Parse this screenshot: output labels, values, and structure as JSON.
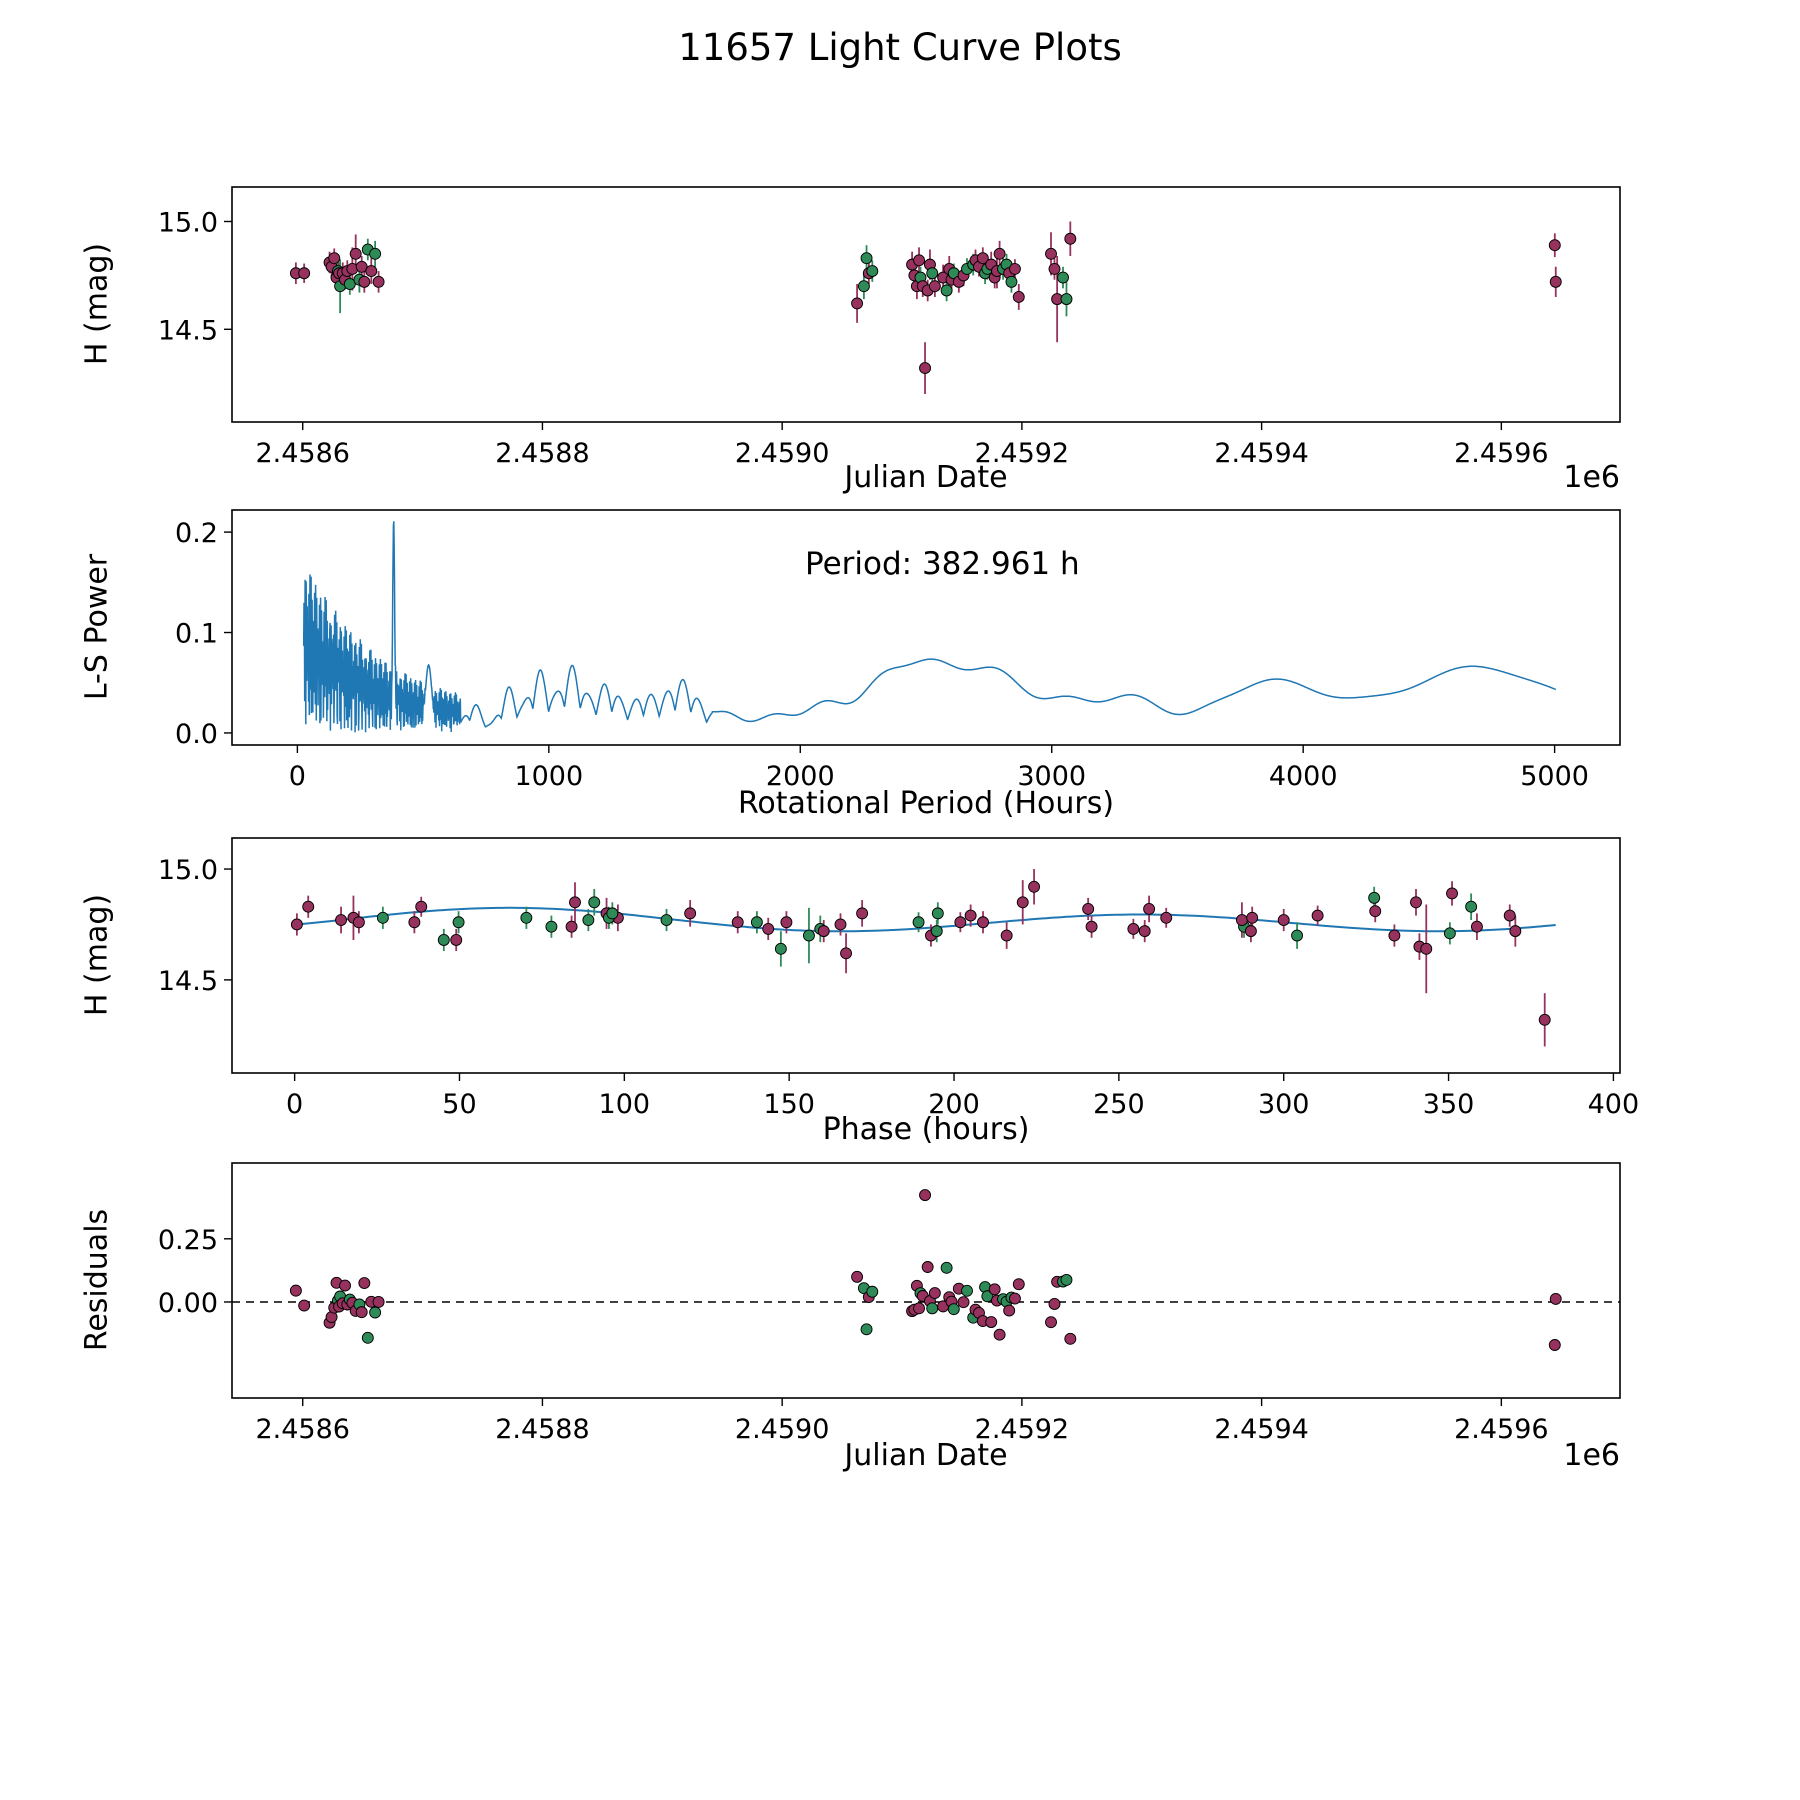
{
  "figure": {
    "title": "11657 Light Curve Plots"
  },
  "colors": {
    "series_magenta": "#97315d",
    "series_green": "#2e8b57",
    "fit_line": "#1f77b4",
    "axis": "#000000"
  },
  "chart_data": [
    {
      "kind": "lightcurve",
      "type": "scatter",
      "xlabel": "Julian Date",
      "ylabel": "H (mag)",
      "x_offset_label": "1e6",
      "xlim": [
        2458541,
        2459699
      ],
      "ylim": [
        14.07,
        15.16
      ],
      "xticks": [
        {
          "v": 2458600,
          "label": "2.4586"
        },
        {
          "v": 2458800,
          "label": "2.4588"
        },
        {
          "v": 2459000,
          "label": "2.4590"
        },
        {
          "v": 2459200,
          "label": "2.4592"
        },
        {
          "v": 2459400,
          "label": "2.4594"
        },
        {
          "v": 2459600,
          "label": "2.4596"
        }
      ],
      "yticks": [
        {
          "v": 15.0,
          "label": "15.0"
        },
        {
          "v": 14.5,
          "label": "14.5"
        }
      ],
      "series_names": [
        "observations-magenta",
        "observations-green"
      ],
      "points": [
        [
          2458594.3,
          14.76,
          0.05,
          0
        ],
        [
          2458601.2,
          14.76,
          0.045,
          0
        ],
        [
          2458622.4,
          14.81,
          0.05,
          0
        ],
        [
          2458624.1,
          14.79,
          0.05,
          0
        ],
        [
          2458626.3,
          14.83,
          0.045,
          0
        ],
        [
          2458628.2,
          14.74,
          0.05,
          0
        ],
        [
          2458629.4,
          14.77,
          0.05,
          1
        ],
        [
          2458630.3,
          14.76,
          0.05,
          0
        ],
        [
          2458631.2,
          14.7,
          0.125,
          1
        ],
        [
          2458633.4,
          14.76,
          0.05,
          0
        ],
        [
          2458635.3,
          14.73,
          0.045,
          0
        ],
        [
          2458637.2,
          14.77,
          0.05,
          0
        ],
        [
          2458639.3,
          14.71,
          0.05,
          1
        ],
        [
          2458641.4,
          14.78,
          0.1,
          0
        ],
        [
          2458644.2,
          14.85,
          0.09,
          0
        ],
        [
          2458647.3,
          14.73,
          0.06,
          1
        ],
        [
          2458649.2,
          14.79,
          0.05,
          0
        ],
        [
          2458651.4,
          14.72,
          0.05,
          0
        ],
        [
          2458654.3,
          14.87,
          0.05,
          1
        ],
        [
          2458657.2,
          14.77,
          0.06,
          0
        ],
        [
          2458660.4,
          14.85,
          0.06,
          1
        ],
        [
          2458663.3,
          14.72,
          0.05,
          0
        ],
        [
          2459062.5,
          14.62,
          0.09,
          0
        ],
        [
          2459068.2,
          14.7,
          0.06,
          1
        ],
        [
          2459070.4,
          14.83,
          0.06,
          1
        ],
        [
          2459072.3,
          14.76,
          0.05,
          0
        ],
        [
          2459075.2,
          14.77,
          0.05,
          1
        ],
        [
          2459108.4,
          14.8,
          0.06,
          0
        ],
        [
          2459110.3,
          14.75,
          0.05,
          0
        ],
        [
          2459112.4,
          14.7,
          0.06,
          0
        ],
        [
          2459114.2,
          14.82,
          0.06,
          0
        ],
        [
          2459115.4,
          14.74,
          0.05,
          1
        ],
        [
          2459117.3,
          14.7,
          0.05,
          0
        ],
        [
          2459119.2,
          14.32,
          0.12,
          0
        ],
        [
          2459121.4,
          14.68,
          0.05,
          0
        ],
        [
          2459123.3,
          14.8,
          0.07,
          0
        ],
        [
          2459125.2,
          14.76,
          0.05,
          1
        ],
        [
          2459127.4,
          14.7,
          0.05,
          0
        ],
        [
          2459134.3,
          14.74,
          0.06,
          0
        ],
        [
          2459137.2,
          14.68,
          0.05,
          1
        ],
        [
          2459139.4,
          14.78,
          0.06,
          0
        ],
        [
          2459141.3,
          14.73,
          0.05,
          0
        ],
        [
          2459143.2,
          14.76,
          0.045,
          1
        ],
        [
          2459147.4,
          14.72,
          0.05,
          0
        ],
        [
          2459151.3,
          14.75,
          0.05,
          0
        ],
        [
          2459154.2,
          14.78,
          0.05,
          1
        ],
        [
          2459159.4,
          14.8,
          0.05,
          1
        ],
        [
          2459161.3,
          14.82,
          0.05,
          0
        ],
        [
          2459164.2,
          14.79,
          0.045,
          0
        ],
        [
          2459167.4,
          14.83,
          0.05,
          0
        ],
        [
          2459169.3,
          14.76,
          0.05,
          1
        ],
        [
          2459171.2,
          14.78,
          0.05,
          1
        ],
        [
          2459174.4,
          14.8,
          0.06,
          0
        ],
        [
          2459177.3,
          14.74,
          0.05,
          0
        ],
        [
          2459179.2,
          14.77,
          0.08,
          0
        ],
        [
          2459181.4,
          14.85,
          0.06,
          0
        ],
        [
          2459184.3,
          14.78,
          0.05,
          1
        ],
        [
          2459187.2,
          14.8,
          0.05,
          1
        ],
        [
          2459189.4,
          14.76,
          0.05,
          0
        ],
        [
          2459191.3,
          14.72,
          0.05,
          1
        ],
        [
          2459194.2,
          14.78,
          0.045,
          0
        ],
        [
          2459197.4,
          14.65,
          0.06,
          0
        ],
        [
          2459224.3,
          14.85,
          0.1,
          0
        ],
        [
          2459227.2,
          14.78,
          0.05,
          0
        ],
        [
          2459229.4,
          14.64,
          0.2,
          0
        ],
        [
          2459234.3,
          14.74,
          0.05,
          1
        ],
        [
          2459237.2,
          14.64,
          0.08,
          1
        ],
        [
          2459240.4,
          14.92,
          0.08,
          0
        ],
        [
          2459644.6,
          14.89,
          0.055,
          0
        ],
        [
          2459645.4,
          14.72,
          0.07,
          0
        ]
      ]
    },
    {
      "kind": "periodogram",
      "type": "line",
      "xlabel": "Rotational Period (Hours)",
      "ylabel": "L-S Power",
      "annotation": "Period: 382.961 h",
      "xlim": [
        -260,
        5260
      ],
      "ylim": [
        -0.012,
        0.222
      ],
      "xticks": [
        {
          "v": 0,
          "label": "0"
        },
        {
          "v": 1000,
          "label": "1000"
        },
        {
          "v": 2000,
          "label": "2000"
        },
        {
          "v": 3000,
          "label": "3000"
        },
        {
          "v": 4000,
          "label": "4000"
        },
        {
          "v": 5000,
          "label": "5000"
        }
      ],
      "yticks": [
        {
          "v": 0.0,
          "label": "0.0"
        },
        {
          "v": 0.1,
          "label": "0.1"
        },
        {
          "v": 0.2,
          "label": "0.2"
        }
      ],
      "main_peak": {
        "period": 382.961,
        "power": 0.212,
        "width": 4
      },
      "dense": {
        "cut": 650,
        "base": 0.02,
        "amp": 0.17,
        "scale": 300,
        "start": 25
      },
      "osc_cut": 1650,
      "bumps": [
        [
          520,
          15,
          0.07
        ],
        [
          700,
          35,
          0.03
        ],
        [
          840,
          35,
          0.045
        ],
        [
          960,
          40,
          0.062
        ],
        [
          1090,
          45,
          0.066
        ],
        [
          1230,
          50,
          0.048
        ],
        [
          1380,
          55,
          0.036
        ],
        [
          1530,
          60,
          0.052
        ],
        [
          1700,
          60,
          0.02
        ],
        [
          1900,
          70,
          0.018
        ],
        [
          2100,
          75,
          0.03
        ],
        [
          2320,
          85,
          0.045
        ],
        [
          2520,
          110,
          0.067
        ],
        [
          2780,
          110,
          0.06
        ],
        [
          3060,
          95,
          0.032
        ],
        [
          3320,
          110,
          0.037
        ],
        [
          3620,
          90,
          0.012
        ],
        [
          3890,
          170,
          0.053
        ],
        [
          4250,
          130,
          0.02
        ],
        [
          4650,
          210,
          0.064
        ],
        [
          5020,
          160,
          0.028
        ]
      ]
    },
    {
      "kind": "phase",
      "type": "scatter+line",
      "xlabel": "Phase (hours)",
      "ylabel": "H (mag)",
      "xlim": [
        -19,
        402
      ],
      "ylim": [
        14.08,
        15.14
      ],
      "xticks": [
        {
          "v": 0,
          "label": "0"
        },
        {
          "v": 50,
          "label": "50"
        },
        {
          "v": 100,
          "label": "100"
        },
        {
          "v": 150,
          "label": "150"
        },
        {
          "v": 200,
          "label": "200"
        },
        {
          "v": 250,
          "label": "250"
        },
        {
          "v": 300,
          "label": "300"
        },
        {
          "v": 350,
          "label": "350"
        },
        {
          "v": 400,
          "label": "400"
        }
      ],
      "yticks": [
        {
          "v": 15.0,
          "label": "15.0"
        },
        {
          "v": 14.5,
          "label": "14.5"
        }
      ],
      "fit": {
        "period": 382.961,
        "jd0": 2458576.83,
        "mean": 14.765,
        "a1": 0.015,
        "p1": 0.505,
        "a2": 0.045,
        "p2": -0.561
      }
    },
    {
      "kind": "residuals",
      "type": "scatter",
      "xlabel": "Julian Date",
      "ylabel": "Residuals",
      "x_offset_label": "1e6",
      "xlim": [
        2458541,
        2459699
      ],
      "ylim": [
        -0.38,
        0.55
      ],
      "zero_line": 0.0,
      "xticks": [
        {
          "v": 2458600,
          "label": "2.4586"
        },
        {
          "v": 2458800,
          "label": "2.4588"
        },
        {
          "v": 2459000,
          "label": "2.4590"
        },
        {
          "v": 2459200,
          "label": "2.4592"
        },
        {
          "v": 2459400,
          "label": "2.4594"
        },
        {
          "v": 2459600,
          "label": "2.4596"
        }
      ],
      "yticks": [
        {
          "v": 0.0,
          "label": "0.00"
        },
        {
          "v": 0.25,
          "label": "0.25"
        }
      ],
      "fit": {
        "period": 382.961,
        "jd0": 2458576.83,
        "mean": 14.765,
        "a1": 0.015,
        "p1": 0.505,
        "a2": 0.045,
        "p2": -0.561
      }
    }
  ]
}
